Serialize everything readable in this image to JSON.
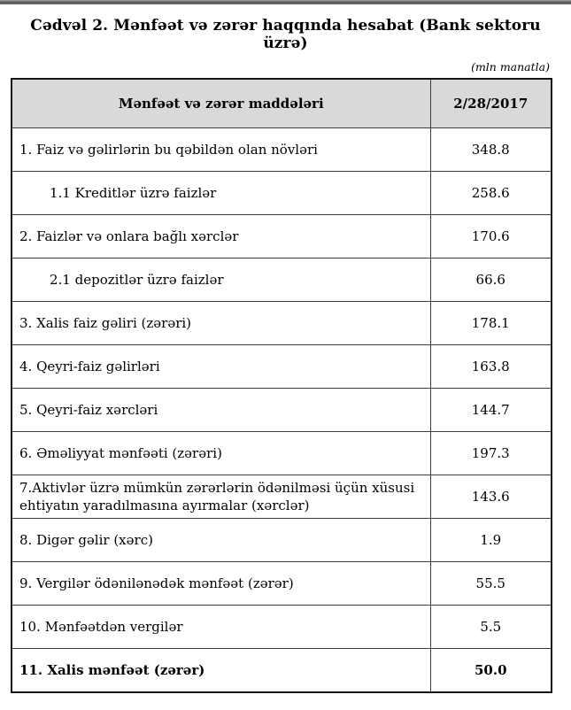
{
  "page": {
    "title": "Cədvəl 2. Mənfəət və zərər haqqında hesabat (Bank sektoru üzrə)",
    "unit_note": "(mln manatla)"
  },
  "table": {
    "header": {
      "items_col": "Mənfəət və zərər maddələri",
      "date_col": "2/28/2017"
    },
    "rows": [
      {
        "label": "1. Faiz və gəlirlərin bu qəbildən olan növləri",
        "value": "348.8",
        "indent": false,
        "bold": false
      },
      {
        "label": "1.1 Kreditlər üzrə faizlər",
        "value": "258.6",
        "indent": true,
        "bold": false
      },
      {
        "label": "2. Faizlər və onlara bağlı xərclər",
        "value": "170.6",
        "indent": false,
        "bold": false
      },
      {
        "label": "2.1 depozitlər üzrə faizlər",
        "value": "66.6",
        "indent": true,
        "bold": false
      },
      {
        "label": "3. Xalis faiz gəliri (zərəri)",
        "value": "178.1",
        "indent": false,
        "bold": false
      },
      {
        "label": "4. Qeyri-faiz gəlirləri",
        "value": "163.8",
        "indent": false,
        "bold": false
      },
      {
        "label": "5. Qeyri-faiz xərcləri",
        "value": "144.7",
        "indent": false,
        "bold": false
      },
      {
        "label": "6. Əməliyyat mənfəəti (zərəri)",
        "value": "197.3",
        "indent": false,
        "bold": false
      },
      {
        "label": "7.Aktivlər üzrə mümkün zərərlərin ödənilməsi üçün xüsusi ehtiyatın yaradılmasına ayırmalar (xərclər)",
        "value": "143.6",
        "indent": false,
        "bold": false
      },
      {
        "label": "8. Digər gəlir (xərc)",
        "value": "1.9",
        "indent": false,
        "bold": false
      },
      {
        "label": "9. Vergilər ödənilənədək mənfəət (zərər)",
        "value": "55.5",
        "indent": false,
        "bold": false
      },
      {
        "label": "10. Mənfəətdən vergilər",
        "value": "5.5",
        "indent": false,
        "bold": false
      },
      {
        "label": "11. Xalis mənfəət (zərər)",
        "value": "50.0",
        "indent": false,
        "bold": true
      }
    ],
    "colors": {
      "header_bg": "#d9d9d9",
      "border_outer": "#141414",
      "border_inner": "#3d3d3d",
      "top_bar": "#585858"
    }
  }
}
